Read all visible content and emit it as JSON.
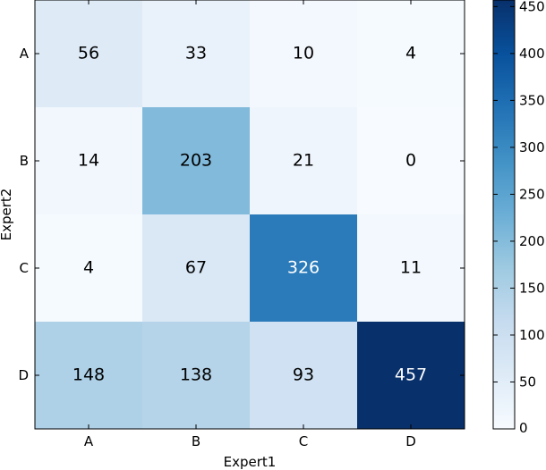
{
  "chart_data": {
    "type": "heatmap",
    "xlabel": "Expert1",
    "ylabel": "Expert2",
    "x_categories": [
      "A",
      "B",
      "C",
      "D"
    ],
    "y_categories": [
      "A",
      "B",
      "C",
      "D"
    ],
    "values": [
      [
        56,
        33,
        10,
        4
      ],
      [
        14,
        203,
        21,
        0
      ],
      [
        4,
        67,
        326,
        11
      ],
      [
        148,
        138,
        93,
        457
      ]
    ],
    "colormap": "Blues",
    "vmin": 0,
    "vmax": 457,
    "colorbar_ticks": [
      0,
      50,
      100,
      150,
      200,
      250,
      300,
      350,
      400,
      450
    ]
  }
}
